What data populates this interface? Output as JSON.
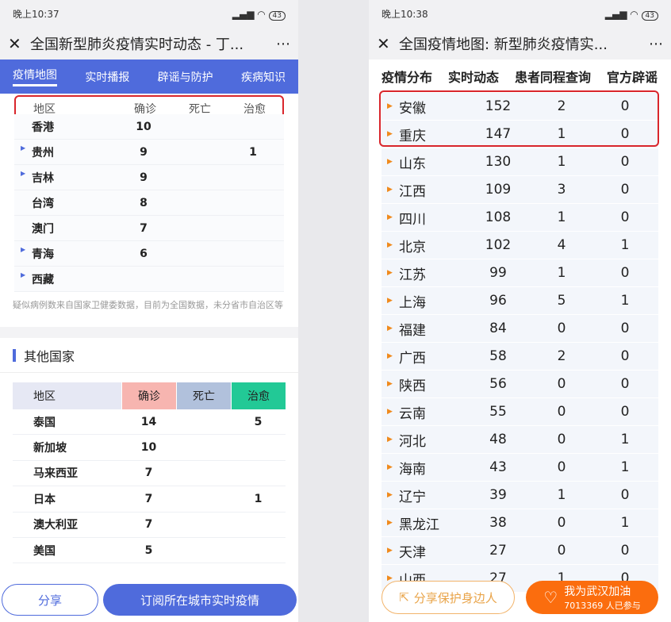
{
  "left": {
    "status": {
      "time": "晚上10:37",
      "battery": "43"
    },
    "title": "全国新型肺炎疫情实时动态 - 丁...",
    "tabs": [
      "疫情地图",
      "实时播报",
      "辟谣与防护",
      "疾病知识"
    ],
    "table_header": [
      "地区",
      "确诊",
      "死亡",
      "治愈"
    ],
    "rows": [
      {
        "name": "香港",
        "confirmed": "10",
        "dead": "",
        "cured": "",
        "expand": false
      },
      {
        "name": "贵州",
        "confirmed": "9",
        "dead": "",
        "cured": "1",
        "expand": true
      },
      {
        "name": "吉林",
        "confirmed": "9",
        "dead": "",
        "cured": "",
        "expand": true
      },
      {
        "name": "台湾",
        "confirmed": "8",
        "dead": "",
        "cured": "",
        "expand": false
      },
      {
        "name": "澳门",
        "confirmed": "7",
        "dead": "",
        "cured": "",
        "expand": false
      },
      {
        "name": "青海",
        "confirmed": "6",
        "dead": "",
        "cured": "",
        "expand": true
      },
      {
        "name": "西藏",
        "confirmed": "",
        "dead": "",
        "cured": "",
        "expand": true
      }
    ],
    "note": "疑似病例数来自国家卫健委数据，目前为全国数据，未分省市自治区等",
    "other_title": "其他国家",
    "other_header": [
      "地区",
      "确诊",
      "死亡",
      "治愈"
    ],
    "other_rows": [
      {
        "name": "泰国",
        "confirmed": "14",
        "dead": "",
        "cured": "5"
      },
      {
        "name": "新加坡",
        "confirmed": "10",
        "dead": "",
        "cured": ""
      },
      {
        "name": "马来西亚",
        "confirmed": "7",
        "dead": "",
        "cured": ""
      },
      {
        "name": "日本",
        "confirmed": "7",
        "dead": "",
        "cured": "1"
      },
      {
        "name": "澳大利亚",
        "confirmed": "7",
        "dead": "",
        "cured": ""
      },
      {
        "name": "美国",
        "confirmed": "5",
        "dead": "",
        "cured": ""
      }
    ],
    "share": "分享",
    "subscribe": "订阅所在城市实时疫情",
    "colors": {
      "accent": "#4f6bdc",
      "highlight": "#d9262c"
    }
  },
  "right": {
    "status": {
      "time": "晚上10:38",
      "battery": "43"
    },
    "title": "全国疫情地图: 新型肺炎疫情实...",
    "tabs": [
      "疫情分布",
      "实时动态",
      "患者同程查询",
      "官方辟谣"
    ],
    "rows": [
      [
        "安徽",
        "152",
        "2",
        "0"
      ],
      [
        "重庆",
        "147",
        "1",
        "0"
      ],
      [
        "山东",
        "130",
        "1",
        "0"
      ],
      [
        "江西",
        "109",
        "3",
        "0"
      ],
      [
        "四川",
        "108",
        "1",
        "0"
      ],
      [
        "北京",
        "102",
        "4",
        "1"
      ],
      [
        "江苏",
        "99",
        "1",
        "0"
      ],
      [
        "上海",
        "96",
        "5",
        "1"
      ],
      [
        "福建",
        "84",
        "0",
        "0"
      ],
      [
        "广西",
        "58",
        "2",
        "0"
      ],
      [
        "陕西",
        "56",
        "0",
        "0"
      ],
      [
        "云南",
        "55",
        "0",
        "0"
      ],
      [
        "河北",
        "48",
        "0",
        "1"
      ],
      [
        "海南",
        "43",
        "0",
        "1"
      ],
      [
        "辽宁",
        "39",
        "1",
        "0"
      ],
      [
        "黑龙江",
        "38",
        "0",
        "1"
      ],
      [
        "天津",
        "27",
        "0",
        "0"
      ],
      [
        "山西",
        "27",
        "1",
        "0"
      ]
    ],
    "share": "分享保护身边人",
    "cheer": "我为武汉加油",
    "cheer_count": "7013369 人已参与",
    "colors": {
      "accent": "#fb6d0e"
    }
  }
}
